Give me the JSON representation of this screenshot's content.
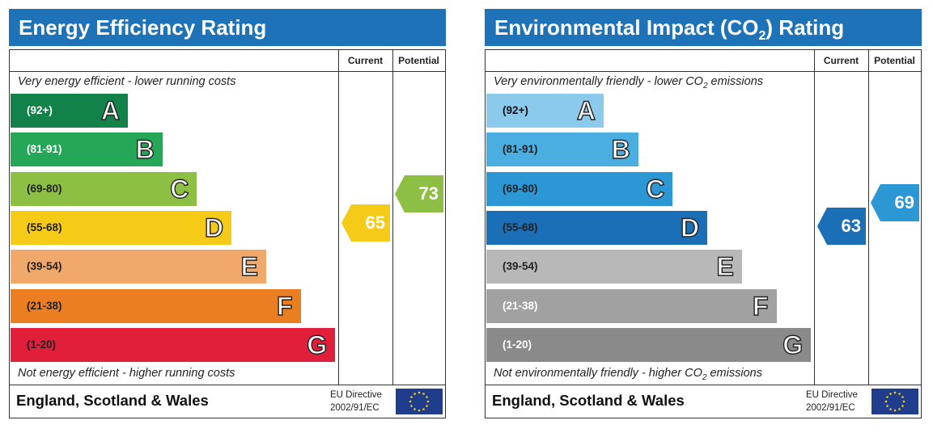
{
  "chart_data": [
    {
      "type": "table",
      "title": "Energy Efficiency Rating",
      "header_color": "#1d72b8",
      "columns": [
        "Current",
        "Potential"
      ],
      "top_note": "Very energy efficient - lower running costs",
      "bottom_note": "Not energy efficient - higher running costs",
      "bands": [
        {
          "range": "(92+)",
          "letter": "A",
          "color": "#12824a",
          "text_color": "#ffffff"
        },
        {
          "range": "(81-91)",
          "letter": "B",
          "color": "#25a757",
          "text_color": "#ffffff"
        },
        {
          "range": "(69-80)",
          "letter": "C",
          "color": "#8cbf43",
          "text_color": "#222222"
        },
        {
          "range": "(55-68)",
          "letter": "D",
          "color": "#f6cb17",
          "text_color": "#222222"
        },
        {
          "range": "(39-54)",
          "letter": "E",
          "color": "#f1a86b",
          "text_color": "#222222"
        },
        {
          "range": "(21-38)",
          "letter": "F",
          "color": "#ec7e22",
          "text_color": "#222222"
        },
        {
          "range": "(1-20)",
          "letter": "G",
          "color": "#e11f3b",
          "text_color": "#222222"
        }
      ],
      "current": {
        "value": 65,
        "color": "#f6cb17"
      },
      "potential": {
        "value": 73,
        "color": "#8cbf43"
      },
      "footer": "England, Scotland & Wales",
      "directive_line1": "EU Directive",
      "directive_line2": "2002/91/EC"
    },
    {
      "type": "table",
      "title_prefix": "Environmental Impact (CO",
      "title_sub": "2",
      "title_suffix": ") Rating",
      "header_color": "#1d72b8",
      "columns": [
        "Current",
        "Potential"
      ],
      "top_note_prefix": "Very environmentally friendly - lower CO",
      "top_note_sub": "2",
      "top_note_suffix": " emissions",
      "bottom_note_prefix": "Not environmentally friendly - higher CO",
      "bottom_note_sub": "2",
      "bottom_note_suffix": " emissions",
      "bands": [
        {
          "range": "(92+)",
          "letter": "A",
          "color": "#8ccaec",
          "text_color": "#111111"
        },
        {
          "range": "(81-91)",
          "letter": "B",
          "color": "#4aaee0",
          "text_color": "#222222"
        },
        {
          "range": "(69-80)",
          "letter": "C",
          "color": "#2b97d4",
          "text_color": "#222222"
        },
        {
          "range": "(55-68)",
          "letter": "D",
          "color": "#1b6fb6",
          "text_color": "#222222"
        },
        {
          "range": "(39-54)",
          "letter": "E",
          "color": "#b8b8b8",
          "text_color": "#222222"
        },
        {
          "range": "(21-38)",
          "letter": "F",
          "color": "#a1a1a1",
          "text_color": "#ffffff"
        },
        {
          "range": "(1-20)",
          "letter": "G",
          "color": "#8a8a8a",
          "text_color": "#ffffff"
        }
      ],
      "current": {
        "value": 63,
        "color": "#1b6fb6"
      },
      "potential": {
        "value": 69,
        "color": "#2b97d4"
      },
      "footer": "England, Scotland & Wales",
      "directive_line1": "EU Directive",
      "directive_line2": "2002/91/EC"
    }
  ]
}
